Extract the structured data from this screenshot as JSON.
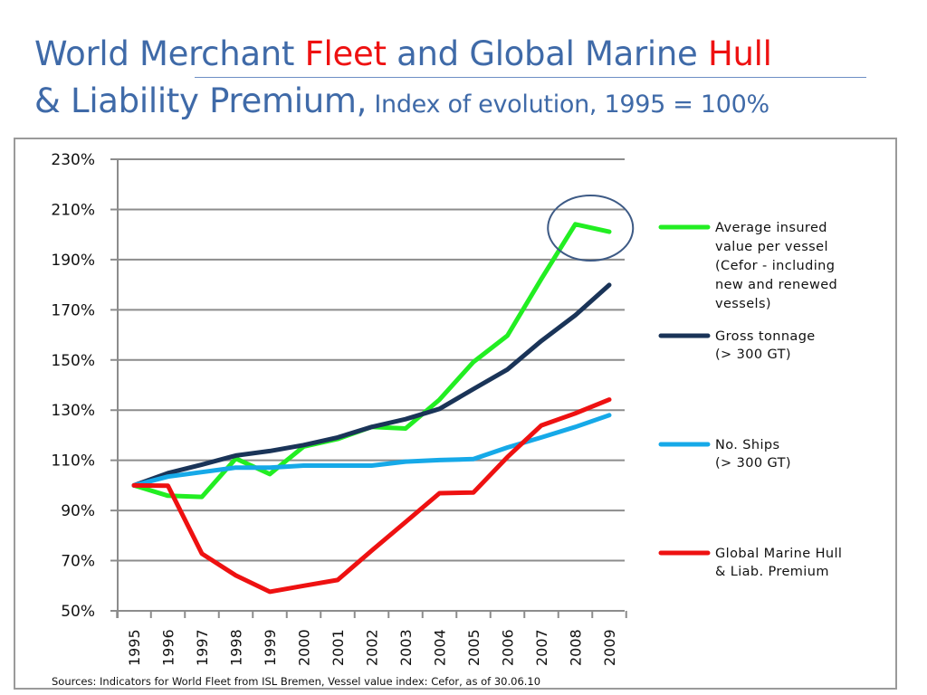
{
  "title": {
    "line1_part1": "World Merchant ",
    "line1_fleet": "Fleet",
    "line1_part2": " and Global Marine ",
    "line1_hull": "Hull",
    "line2_main": "& Liability Premium,",
    "line2_sub": " Index of evolution, 1995 = 100%"
  },
  "source_note": "Sources: Indicators for World Fleet from ISL Bremen, Vessel value index: Cefor, as of 30.06.10",
  "chart_data": {
    "type": "line",
    "title": "World Merchant Fleet and Global Marine Hull & Liability Premium, Index of evolution, 1995 = 100%",
    "xlabel": "",
    "ylabel": "",
    "ylim": [
      50,
      230
    ],
    "yticks": [
      50,
      70,
      90,
      110,
      130,
      150,
      170,
      190,
      210,
      230
    ],
    "ytick_labels": [
      "50%",
      "70%",
      "90%",
      "110%",
      "130%",
      "150%",
      "170%",
      "190%",
      "210%",
      "230%"
    ],
    "grid": true,
    "legend_position": "right",
    "x": [
      "1995",
      "1996",
      "1997",
      "1998",
      "1999",
      "2000",
      "2001",
      "2002",
      "2003",
      "2004",
      "2005",
      "2006",
      "2007",
      "2008",
      "2009"
    ],
    "series": [
      {
        "name": "Average insured value per vessel (Cefor - including new and renewed vessels)",
        "legend_lines": [
          "Average insured",
          "value per vessel",
          "(Cefor - including",
          "new and renewed",
          "vessels)"
        ],
        "color": "#22ee22",
        "values": [
          100,
          95.9,
          95.4,
          110.7,
          104.5,
          115.5,
          118.5,
          123.3,
          122.7,
          134.2,
          149.2,
          159.7,
          182.3,
          204.1,
          201.1
        ]
      },
      {
        "name": "Gross tonnage (> 300 GT)",
        "legend_lines": [
          "Gross tonnage",
          "(> 300 GT)"
        ],
        "color": "#1a3458",
        "values": [
          100,
          104.9,
          108.3,
          111.9,
          113.7,
          116.1,
          119.1,
          123.3,
          126.4,
          130.5,
          138.4,
          146.2,
          157.6,
          167.8,
          179.9
        ]
      },
      {
        "name": "No. Ships (> 300 GT)",
        "legend_lines": [
          "No. Ships",
          "(> 300 GT)"
        ],
        "color": "#16a9e8",
        "values": [
          100,
          103.5,
          105.3,
          107.1,
          107.1,
          107.9,
          107.9,
          107.9,
          109.5,
          110.1,
          110.5,
          115.1,
          119.1,
          123.3,
          128.0
        ]
      },
      {
        "name": "Global Marine Hull & Liab. Premium",
        "legend_lines": [
          "Global Marine Hull",
          "& Liab. Premium"
        ],
        "color": "#ee1111",
        "values": [
          100,
          99.9,
          72.8,
          64.1,
          57.6,
          60.0,
          62.3,
          74.0,
          85.4,
          96.9,
          97.2,
          111.3,
          123.9,
          128.7,
          134.2
        ]
      }
    ],
    "annotations": [
      {
        "type": "ellipse-highlight",
        "target": "Average insured value per vessel, 2008-2009 peak",
        "color": "#3d5a85"
      }
    ]
  }
}
